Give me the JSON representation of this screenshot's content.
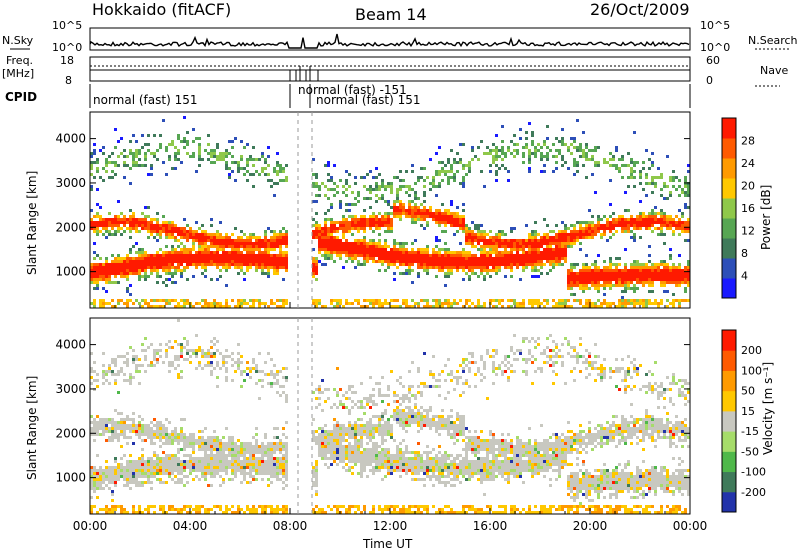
{
  "header": {
    "station": "Hokkaido (fitACF)",
    "beam": "Beam 14",
    "date": "26/Oct/2009"
  },
  "params": {
    "nsky_label": "N.Sky",
    "nsky_ticks": [
      "10^5",
      "10^0"
    ],
    "nsearch_label": "N.Search",
    "nsearch_ticks": [
      "10^5",
      "10^0"
    ],
    "freq_label_1": "Freq.",
    "freq_label_2": "[MHz]",
    "freq_ticks": [
      "18",
      "8"
    ],
    "nave_label": "Nave",
    "nave_ticks": [
      "60",
      "0"
    ],
    "cpid_label": "CPID",
    "cpid_segments": [
      "normal (fast) 151",
      "normal (fast) -151",
      "normal (fast) 151"
    ]
  },
  "chart_data": [
    {
      "type": "heatmap",
      "name": "power",
      "ylabel": "Slant Range [km]",
      "yticks": [
        "4000",
        "3000",
        "2000",
        "1000"
      ],
      "yrange_km": [
        180,
        4600
      ],
      "colorbar_label": "Power [dB]",
      "colorbar_ticks": [
        "28",
        "24",
        "20",
        "16",
        "12",
        "8",
        "4"
      ],
      "colorbar_colors": [
        "#1a1aff",
        "#2d4fb8",
        "#3f7a5a",
        "#57a653",
        "#8fc84a",
        "#ffc800",
        "#ff9a00",
        "#ff5a00",
        "#ff1a00"
      ]
    },
    {
      "type": "heatmap",
      "name": "velocity",
      "ylabel": "Slant Range [km]",
      "yticks": [
        "4000",
        "3000",
        "2000",
        "1000"
      ],
      "yrange_km": [
        180,
        4600
      ],
      "colorbar_label": "Velocity [m s⁻¹]",
      "colorbar_ticks": [
        "200",
        "100",
        "50",
        "15",
        "-15",
        "-50",
        "-100",
        "-200"
      ],
      "colorbar_colors": [
        "#2233aa",
        "#3f7a5a",
        "#4fb84a",
        "#a6dc6a",
        "#c8c8c0",
        "#ffc800",
        "#ff9a00",
        "#ff5a00",
        "#ff1a00"
      ]
    }
  ],
  "xaxis": {
    "label": "Time UT",
    "ticks": [
      "00:00",
      "04:00",
      "08:00",
      "12:00",
      "16:00",
      "20:00",
      "00:00"
    ]
  }
}
